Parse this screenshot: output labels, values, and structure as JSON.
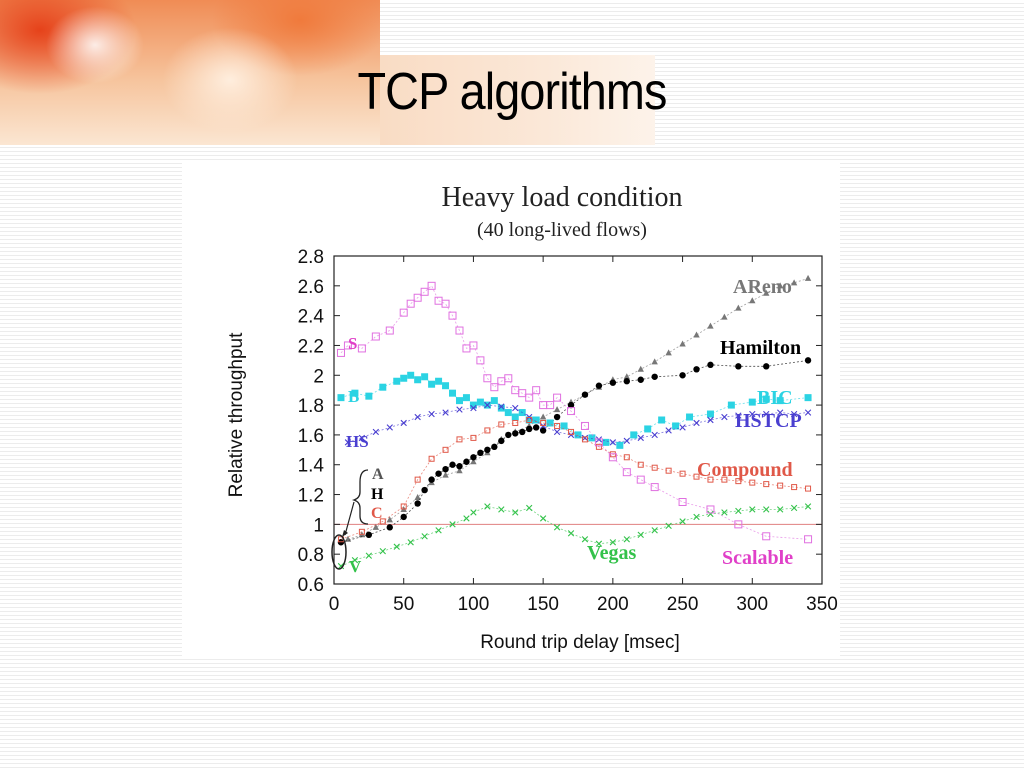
{
  "slide": {
    "title": "TCP algorithms"
  },
  "chart_data": {
    "type": "scatter",
    "title": "Heavy load condition",
    "subtitle": "(40 long-lived flows)",
    "xlabel": "Round trip delay [msec]",
    "ylabel": "Relative throughput",
    "xlim": [
      0,
      350
    ],
    "ylim": [
      0.6,
      2.8
    ],
    "x_ticks": [
      "0",
      "50",
      "100",
      "150",
      "200",
      "250",
      "300",
      "350"
    ],
    "y_ticks": [
      "0.6",
      "0.8",
      "1",
      "1.2",
      "1.4",
      "1.6",
      "1.8",
      "2",
      "2.2",
      "2.4",
      "2.6",
      "2.8"
    ],
    "reference_line": 1,
    "left_labels": {
      "S": "S",
      "B": "B",
      "HS": "HS",
      "A": "A",
      "H": "H",
      "C": "C",
      "V": "V"
    },
    "series": [
      {
        "name": "AReno",
        "color": "#777777",
        "marker": "triangle",
        "x": [
          10,
          20,
          30,
          40,
          50,
          60,
          70,
          80,
          90,
          100,
          110,
          120,
          130,
          140,
          150,
          160,
          170,
          180,
          190,
          200,
          210,
          220,
          230,
          240,
          250,
          260,
          270,
          280,
          290,
          300,
          310,
          320,
          330,
          340
        ],
        "y": [
          0.9,
          0.93,
          0.98,
          1.03,
          1.1,
          1.18,
          1.28,
          1.33,
          1.36,
          1.42,
          1.48,
          1.57,
          1.62,
          1.66,
          1.72,
          1.77,
          1.82,
          1.87,
          1.92,
          1.97,
          1.99,
          2.04,
          2.09,
          2.15,
          2.21,
          2.27,
          2.33,
          2.39,
          2.45,
          2.5,
          2.55,
          2.6,
          2.62,
          2.65
        ]
      },
      {
        "name": "Hamilton",
        "color": "#000000",
        "marker": "circle",
        "x": [
          5,
          25,
          40,
          50,
          60,
          65,
          70,
          75,
          80,
          85,
          90,
          95,
          100,
          105,
          110,
          115,
          120,
          125,
          130,
          135,
          140,
          145,
          150,
          160,
          170,
          180,
          190,
          200,
          210,
          220,
          230,
          250,
          260,
          270,
          290,
          310,
          340
        ],
        "y": [
          0.88,
          0.93,
          0.98,
          1.05,
          1.14,
          1.23,
          1.3,
          1.34,
          1.37,
          1.4,
          1.39,
          1.42,
          1.45,
          1.48,
          1.5,
          1.52,
          1.56,
          1.6,
          1.61,
          1.62,
          1.64,
          1.65,
          1.63,
          1.72,
          1.8,
          1.87,
          1.93,
          1.95,
          1.96,
          1.97,
          1.99,
          2.0,
          2.04,
          2.07,
          2.06,
          2.06,
          2.1
        ]
      },
      {
        "name": "BIC",
        "color": "#2bd3e3",
        "marker": "square",
        "x": [
          5,
          15,
          25,
          35,
          45,
          50,
          55,
          60,
          65,
          70,
          75,
          80,
          85,
          90,
          95,
          100,
          105,
          110,
          115,
          120,
          125,
          130,
          135,
          140,
          145,
          155,
          165,
          175,
          185,
          195,
          205,
          215,
          225,
          235,
          245,
          255,
          270,
          285,
          300,
          310,
          320,
          340
        ],
        "y": [
          1.85,
          1.88,
          1.86,
          1.92,
          1.96,
          1.98,
          2.0,
          1.97,
          1.99,
          1.94,
          1.96,
          1.93,
          1.88,
          1.83,
          1.85,
          1.8,
          1.82,
          1.8,
          1.83,
          1.78,
          1.75,
          1.72,
          1.75,
          1.7,
          1.7,
          1.68,
          1.66,
          1.6,
          1.58,
          1.55,
          1.53,
          1.6,
          1.64,
          1.7,
          1.66,
          1.72,
          1.74,
          1.8,
          1.82,
          1.84,
          1.83,
          1.85
        ]
      },
      {
        "name": "HSTCP",
        "color": "#4a3fd0",
        "marker": "x",
        "x": [
          10,
          20,
          30,
          40,
          50,
          60,
          70,
          80,
          90,
          100,
          110,
          120,
          130,
          140,
          150,
          160,
          170,
          180,
          190,
          200,
          210,
          220,
          230,
          240,
          250,
          260,
          270,
          280,
          290,
          300,
          310,
          320,
          330,
          340
        ],
        "y": [
          1.55,
          1.58,
          1.62,
          1.65,
          1.68,
          1.72,
          1.74,
          1.75,
          1.77,
          1.78,
          1.8,
          1.79,
          1.78,
          1.72,
          1.66,
          1.62,
          1.6,
          1.58,
          1.57,
          1.55,
          1.56,
          1.58,
          1.6,
          1.63,
          1.65,
          1.68,
          1.7,
          1.72,
          1.73,
          1.74,
          1.74,
          1.75,
          1.74,
          1.75
        ]
      },
      {
        "name": "Compound",
        "color": "#e05848",
        "marker": "small-square",
        "x": [
          5,
          20,
          35,
          50,
          60,
          70,
          80,
          90,
          100,
          110,
          120,
          130,
          140,
          150,
          160,
          170,
          180,
          190,
          200,
          210,
          220,
          230,
          240,
          250,
          260,
          270,
          280,
          290,
          300,
          310,
          320,
          330,
          340
        ],
        "y": [
          0.9,
          0.95,
          1.02,
          1.12,
          1.3,
          1.44,
          1.5,
          1.57,
          1.58,
          1.63,
          1.67,
          1.68,
          1.7,
          1.68,
          1.66,
          1.62,
          1.57,
          1.52,
          1.47,
          1.45,
          1.4,
          1.38,
          1.36,
          1.34,
          1.32,
          1.3,
          1.3,
          1.29,
          1.28,
          1.27,
          1.26,
          1.25,
          1.24
        ]
      },
      {
        "name": "Vegas",
        "color": "#33c24a",
        "marker": "x",
        "x": [
          5,
          15,
          25,
          35,
          45,
          55,
          65,
          75,
          85,
          95,
          100,
          110,
          120,
          130,
          140,
          150,
          160,
          170,
          180,
          190,
          200,
          210,
          220,
          230,
          240,
          250,
          260,
          270,
          280,
          290,
          300,
          310,
          320,
          330,
          340
        ],
        "y": [
          0.72,
          0.76,
          0.79,
          0.82,
          0.85,
          0.88,
          0.92,
          0.96,
          1.0,
          1.04,
          1.08,
          1.12,
          1.1,
          1.08,
          1.11,
          1.04,
          0.98,
          0.94,
          0.9,
          0.87,
          0.88,
          0.9,
          0.93,
          0.96,
          0.99,
          1.02,
          1.05,
          1.07,
          1.08,
          1.09,
          1.1,
          1.1,
          1.1,
          1.11,
          1.12
        ]
      },
      {
        "name": "Scalable",
        "color": "#e070e0",
        "marker": "open-square",
        "x": [
          5,
          10,
          20,
          30,
          40,
          50,
          55,
          60,
          65,
          70,
          75,
          80,
          85,
          90,
          95,
          100,
          105,
          110,
          115,
          120,
          125,
          130,
          135,
          140,
          145,
          150,
          155,
          160,
          170,
          180,
          190,
          200,
          210,
          220,
          230,
          250,
          270,
          290,
          310,
          340
        ],
        "y": [
          2.15,
          2.2,
          2.18,
          2.26,
          2.3,
          2.42,
          2.48,
          2.52,
          2.56,
          2.6,
          2.5,
          2.48,
          2.4,
          2.3,
          2.18,
          2.2,
          2.1,
          1.98,
          1.92,
          1.96,
          1.98,
          1.9,
          1.88,
          1.85,
          1.9,
          1.8,
          1.8,
          1.85,
          1.76,
          1.66,
          1.55,
          1.45,
          1.35,
          1.3,
          1.25,
          1.15,
          1.1,
          1.0,
          0.92,
          0.9
        ]
      }
    ]
  }
}
